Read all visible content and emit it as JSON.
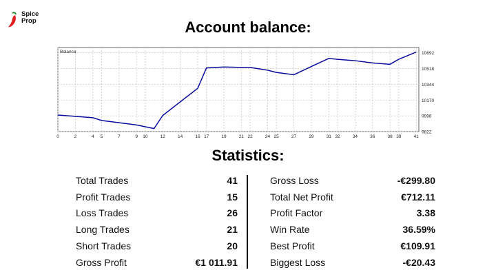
{
  "brand": {
    "name_line1": "Spice",
    "name_line2": "Prop",
    "icon": "chili-pepper-icon",
    "accent": "#e02020"
  },
  "title": "Account balance:",
  "stats_heading": "Statistics:",
  "chart_data": {
    "type": "line",
    "title": "Balance",
    "x": [
      0,
      2,
      4,
      5,
      7,
      9,
      10,
      11,
      12,
      14,
      16,
      17,
      19,
      21,
      22,
      24,
      25,
      27,
      29,
      31,
      32,
      34,
      36,
      38,
      39,
      41
    ],
    "x_ticks": [
      "0",
      "2",
      "4",
      "5",
      "7",
      "9",
      "10",
      "12",
      "14",
      "16",
      "17",
      "19",
      "21",
      "22",
      "24",
      "25",
      "27",
      "29",
      "31",
      "32",
      "34",
      "36",
      "38",
      "39",
      "41"
    ],
    "y_ticks": [
      "9822",
      "9996",
      "10170",
      "10344",
      "10518",
      "10692"
    ],
    "series": [
      {
        "values": [
          10005,
          9990,
          9975,
          9945,
          9920,
          9895,
          9875,
          9855,
          10000,
          10150,
          10300,
          10525,
          10535,
          10530,
          10530,
          10500,
          10475,
          10450,
          10540,
          10630,
          10620,
          10605,
          10580,
          10565,
          10620,
          10700
        ]
      }
    ],
    "xlim": [
      0,
      41.3
    ],
    "ylim": [
      9822,
      10750
    ],
    "grid": true,
    "line_color": "#0a0a9c"
  },
  "stats": {
    "left": [
      {
        "label": "Total Trades",
        "value": "41"
      },
      {
        "label": "Profit Trades",
        "value": "15"
      },
      {
        "label": "Loss Trades",
        "value": "26"
      },
      {
        "label": "Long Trades",
        "value": "21"
      },
      {
        "label": "Short Trades",
        "value": "20"
      },
      {
        "label": "Gross Profit",
        "value": "€1 011.91"
      }
    ],
    "right": [
      {
        "label": "Gross Loss",
        "value": "-€299.80"
      },
      {
        "label": "Total Net Profit",
        "value": "€712.11"
      },
      {
        "label": "Profit Factor",
        "value": "3.38"
      },
      {
        "label": "Win Rate",
        "value": "36.59%"
      },
      {
        "label": "Best Profit",
        "value": "€109.91"
      },
      {
        "label": "Biggest Loss",
        "value": "-€20.43"
      }
    ]
  }
}
